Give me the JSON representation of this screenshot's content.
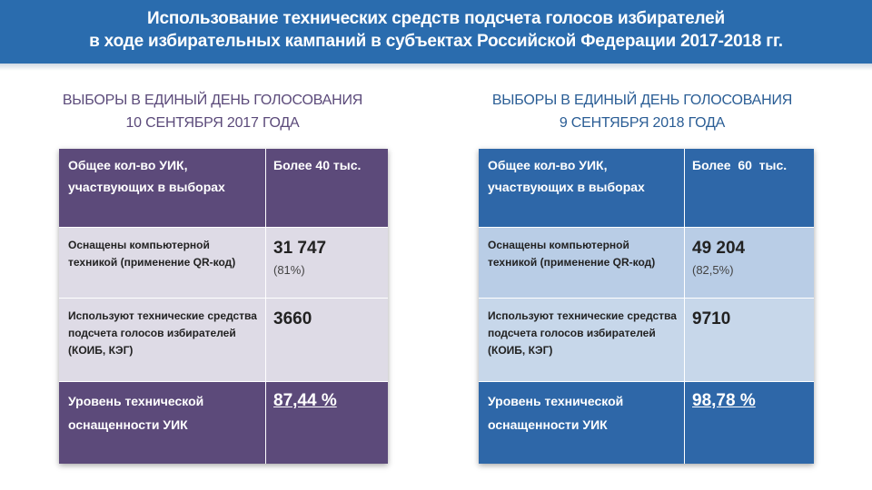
{
  "header": {
    "line1": "Использование технических средств подсчета голосов избирателей",
    "line2": "в ходе избирательных кампаний в субъектах Российской Федерации 2017-2018 гг."
  },
  "left": {
    "title1": "ВЫБОРЫ В ЕДИНЫЙ ДЕНЬ ГОЛОСОВАНИЯ",
    "title2": "10 СЕНТЯБРЯ 2017 ГОДА",
    "r1_label": "Общее кол-во УИК, участвующих в выборах",
    "r1_value": "Более 40 тыс.",
    "r2_label": "Оснащены компьютерной техникой (применение QR-код)",
    "r2_value": "31 747",
    "r2_pct": "(81%)",
    "r3_label": "Используют технические средства подсчета голосов избирателей (КОИБ, КЭГ)",
    "r3_value": "3660",
    "r4_label": "Уровень технической оснащенности УИК",
    "r4_value": "87,44 %"
  },
  "right": {
    "title1": "ВЫБОРЫ В ЕДИНЫЙ ДЕНЬ ГОЛОСОВАНИЯ",
    "title2": "9 СЕНТЯБРЯ 2018 ГОДА",
    "r1_label": "Общее кол-во УИК, участвующих в выборах",
    "r1_value": "Более  60  тыс.",
    "r2_label": "Оснащены компьютерной техникой (применение QR-код)",
    "r2_value": "49 204",
    "r2_pct": "(82,5%)",
    "r3_label": "Используют технические средства подсчета голосов избирателей (КОИБ, КЭГ)",
    "r3_value": "9710",
    "r4_label": "Уровень технической оснащенности УИК",
    "r4_value": "98,78 %"
  },
  "colors": {
    "header_blue": "#2a6cae",
    "left_dark": "#5c4a7a",
    "left_light": "#dedbe6",
    "right_dark": "#2e67a8",
    "right_light": "#b9cde6"
  }
}
